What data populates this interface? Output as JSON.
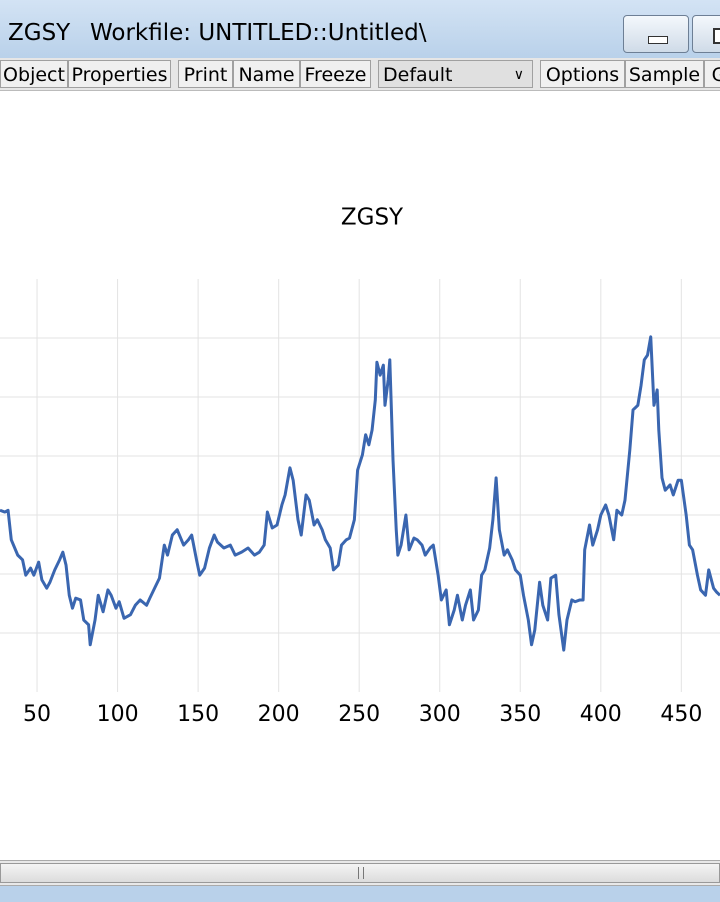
{
  "window": {
    "title": "ZGSY",
    "subtitle": "Workfile: UNTITLED::Untitled\\"
  },
  "toolbar": {
    "buttons": [
      "Object",
      "Properties",
      "Print",
      "Name",
      "Freeze"
    ],
    "dropdown": "Default",
    "buttons2": [
      "Options",
      "Sample",
      "G"
    ]
  },
  "chart_data": {
    "type": "line",
    "title": "ZGSY",
    "color": "#3a66b0",
    "grid": true,
    "xlim": [
      27,
      474
    ],
    "xticks": [
      50,
      100,
      150,
      200,
      250,
      300,
      350,
      400,
      450
    ],
    "ylim": [
      0,
      7
    ],
    "yticks": [
      1,
      2,
      3,
      4,
      5,
      6
    ],
    "x": [
      27,
      30,
      32,
      34,
      38,
      41,
      43,
      46,
      48,
      51,
      53,
      56,
      58,
      61,
      64,
      66,
      68,
      70,
      72,
      74,
      77,
      79,
      82,
      83,
      86,
      88,
      91,
      94,
      96,
      99,
      101,
      104,
      108,
      111,
      114,
      118,
      120,
      123,
      126,
      129,
      131,
      134,
      137,
      141,
      144,
      146,
      149,
      151,
      154,
      157,
      160,
      162,
      166,
      170,
      173,
      177,
      181,
      185,
      188,
      191,
      193,
      196,
      199,
      202,
      204,
      207,
      209,
      212,
      214,
      217,
      219,
      222,
      224,
      227,
      229,
      232,
      234,
      237,
      239,
      242,
      244,
      247,
      249,
      252,
      254,
      256,
      258,
      260,
      261,
      263,
      265,
      266,
      268,
      269,
      271,
      273,
      274,
      276,
      279,
      281,
      284,
      286,
      289,
      291,
      294,
      296,
      299,
      301,
      304,
      306,
      309,
      311,
      314,
      316,
      319,
      321,
      324,
      326,
      328,
      331,
      333,
      335,
      337,
      340,
      342,
      345,
      347,
      350,
      352,
      355,
      357,
      359,
      362,
      364,
      367,
      369,
      372,
      374,
      377,
      379,
      382,
      384,
      387,
      389,
      390,
      393,
      395,
      398,
      400,
      403,
      405,
      408,
      410,
      413,
      415,
      418,
      420,
      423,
      425,
      427,
      429,
      431,
      433,
      435,
      436,
      438,
      440,
      443,
      445,
      448,
      450,
      453,
      455,
      457,
      460,
      462,
      465,
      467,
      470,
      472,
      474
    ],
    "values": [
      3.08,
      3.05,
      3.08,
      2.58,
      2.32,
      2.24,
      1.98,
      2.1,
      1.98,
      2.2,
      1.9,
      1.76,
      1.86,
      2.07,
      2.24,
      2.37,
      2.15,
      1.64,
      1.42,
      1.59,
      1.56,
      1.22,
      1.14,
      0.8,
      1.22,
      1.64,
      1.36,
      1.73,
      1.64,
      1.42,
      1.53,
      1.25,
      1.31,
      1.47,
      1.56,
      1.47,
      1.59,
      1.76,
      1.93,
      2.49,
      2.32,
      2.66,
      2.75,
      2.49,
      2.58,
      2.66,
      2.24,
      1.98,
      2.1,
      2.44,
      2.66,
      2.54,
      2.44,
      2.49,
      2.32,
      2.37,
      2.44,
      2.32,
      2.37,
      2.49,
      3.05,
      2.78,
      2.83,
      3.17,
      3.34,
      3.8,
      3.59,
      2.92,
      2.66,
      3.34,
      3.25,
      2.83,
      2.92,
      2.75,
      2.58,
      2.44,
      2.07,
      2.15,
      2.49,
      2.58,
      2.61,
      2.92,
      3.76,
      4.02,
      4.36,
      4.19,
      4.44,
      4.95,
      5.59,
      5.37,
      5.54,
      4.86,
      5.29,
      5.63,
      3.93,
      2.75,
      2.32,
      2.49,
      3.0,
      2.41,
      2.61,
      2.58,
      2.49,
      2.32,
      2.44,
      2.49,
      1.98,
      1.56,
      1.73,
      1.14,
      1.39,
      1.64,
      1.22,
      1.47,
      1.73,
      1.22,
      1.39,
      1.98,
      2.07,
      2.44,
      2.92,
      3.63,
      2.75,
      2.32,
      2.41,
      2.24,
      2.07,
      1.98,
      1.64,
      1.22,
      0.8,
      1.05,
      1.86,
      1.47,
      1.22,
      1.93,
      1.98,
      1.31,
      0.71,
      1.22,
      1.56,
      1.53,
      1.56,
      1.56,
      2.41,
      2.83,
      2.49,
      2.75,
      3.0,
      3.17,
      3.0,
      2.58,
      3.08,
      3.0,
      3.25,
      4.1,
      4.78,
      4.86,
      5.2,
      5.63,
      5.71,
      6.02,
      4.86,
      5.12,
      4.44,
      3.63,
      3.42,
      3.51,
      3.34,
      3.59,
      3.59,
      3.0,
      2.49,
      2.41,
      1.98,
      1.73,
      1.64,
      2.07,
      1.76,
      1.69,
      1.64
    ]
  }
}
